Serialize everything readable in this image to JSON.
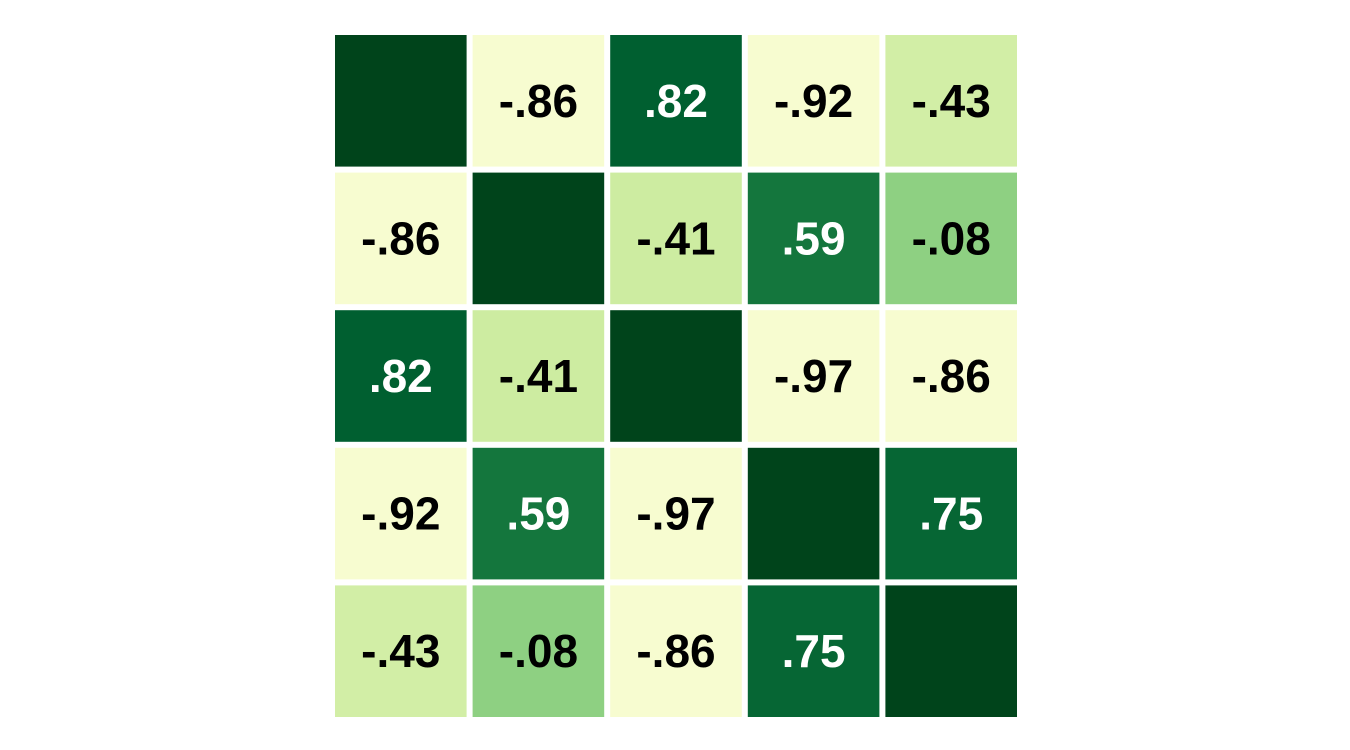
{
  "chart_data": {
    "type": "heatmap",
    "title": "",
    "xlabel": "",
    "ylabel": "",
    "legend": "none",
    "grid": false,
    "matrix": [
      [
        1.0,
        -0.86,
        0.82,
        -0.92,
        -0.43
      ],
      [
        -0.86,
        1.0,
        -0.41,
        0.59,
        -0.08
      ],
      [
        0.82,
        -0.41,
        1.0,
        -0.97,
        -0.86
      ],
      [
        -0.92,
        0.59,
        -0.97,
        1.0,
        0.75
      ],
      [
        -0.43,
        -0.08,
        -0.86,
        0.75,
        1.0
      ]
    ],
    "labels": [
      [
        "",
        "-.86",
        ".82",
        "-.92",
        "-.43"
      ],
      [
        "-.86",
        "",
        "-.41",
        ".59",
        "-.08"
      ],
      [
        ".82",
        "-.41",
        "",
        "-.97",
        "-.86"
      ],
      [
        "-.92",
        ".59",
        "-.97",
        "",
        ".75"
      ],
      [
        "-.43",
        "-.08",
        "-.86",
        ".75",
        ""
      ]
    ],
    "colormap": {
      "low": "#f7fcd0",
      "mid_low": "#cbeb9f",
      "mid": "#88cd7f",
      "mid_high": "#187a3f",
      "high": "#00441b"
    },
    "label_colors": {
      "dark_cell": "#ffffff",
      "light_cell": "#000000"
    }
  }
}
